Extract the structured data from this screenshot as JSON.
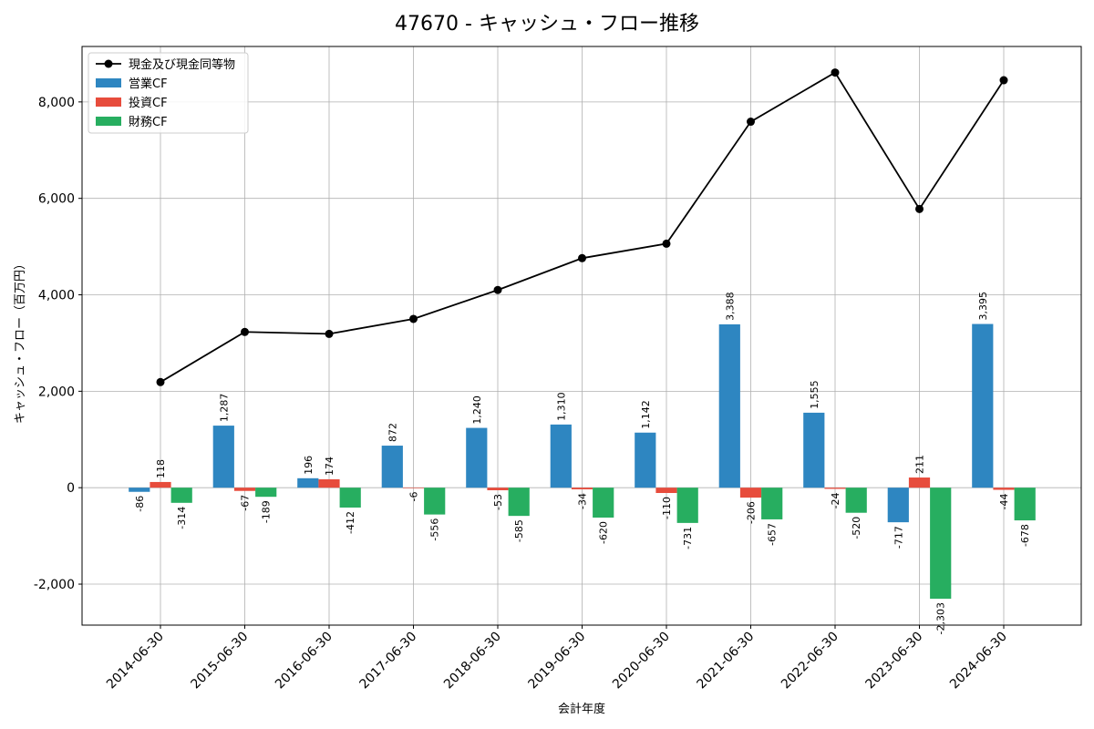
{
  "chart_data": {
    "type": "bar+line",
    "title": "47670 - キャッシュ・フロー推移",
    "xlabel": "会計年度",
    "ylabel": "キャッシュ・フロー（百万円）",
    "ylim": [
      -2850,
      9150
    ],
    "yticks": [
      -2000,
      0,
      2000,
      4000,
      6000,
      8000
    ],
    "ytick_labels": [
      "-2,000",
      "0",
      "2,000",
      "4,000",
      "6,000",
      "8,000"
    ],
    "grid": true,
    "legend_position": "top-left",
    "categories": [
      "2014-06-30",
      "2015-06-30",
      "2016-06-30",
      "2017-06-30",
      "2018-06-30",
      "2019-06-30",
      "2020-06-30",
      "2021-06-30",
      "2022-06-30",
      "2023-06-30",
      "2024-06-30"
    ],
    "series": [
      {
        "name": "営業CF",
        "kind": "bar",
        "color": "#2e86c1",
        "values": [
          -86,
          1287,
          196,
          872,
          1240,
          1310,
          1142,
          3388,
          1555,
          -717,
          3395
        ],
        "labels": [
          "-86",
          "1,287",
          "196",
          "872",
          "1,240",
          "1,310",
          "1,142",
          "3,388",
          "1,555",
          "-717",
          "3,395"
        ]
      },
      {
        "name": "投資CF",
        "kind": "bar",
        "color": "#e74c3c",
        "values": [
          118,
          -67,
          174,
          -6,
          -53,
          -34,
          -110,
          -206,
          -24,
          211,
          -44
        ],
        "labels": [
          "118",
          "-67",
          "174",
          "-6",
          "-53",
          "-34",
          "-110",
          "-206",
          "-24",
          "211",
          "-44"
        ]
      },
      {
        "name": "財務CF",
        "kind": "bar",
        "color": "#27ae60",
        "values": [
          -314,
          -189,
          -412,
          -556,
          -585,
          -620,
          -731,
          -657,
          -520,
          -2303,
          -678
        ],
        "labels": [
          "-314",
          "-189",
          "-412",
          "-556",
          "-585",
          "-620",
          "-731",
          "-657",
          "-520",
          "-2,303",
          "-678"
        ]
      },
      {
        "name": "現金及び現金同等物",
        "kind": "line",
        "color": "#000000",
        "values": [
          2190,
          3230,
          3190,
          3500,
          4100,
          4760,
          5060,
          7590,
          8610,
          5780,
          8450
        ]
      }
    ],
    "legend_order": [
      "現金及び現金同等物",
      "営業CF",
      "投資CF",
      "財務CF"
    ]
  }
}
